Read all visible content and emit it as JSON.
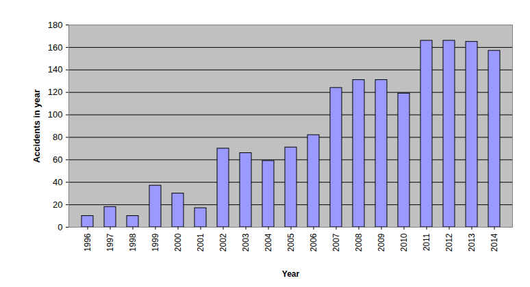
{
  "chart_data": {
    "type": "bar",
    "x_label": "Year",
    "y_label": "Accidents in year",
    "categories": [
      "1996",
      "1997",
      "1998",
      "1999",
      "2000",
      "2001",
      "2002",
      "2003",
      "2004",
      "2005",
      "2006",
      "2007",
      "2008",
      "2009",
      "2010",
      "2011",
      "2012",
      "2013",
      "2014"
    ],
    "values": [
      10,
      18,
      10,
      37,
      30,
      17,
      70,
      66,
      59,
      71,
      82,
      124,
      131,
      131,
      119,
      166,
      166,
      165,
      157
    ],
    "color": "#9999ff",
    "ylim": [
      0,
      180
    ],
    "yticks": [
      0,
      20,
      40,
      60,
      80,
      100,
      120,
      140,
      160,
      180
    ],
    "grid": true
  }
}
